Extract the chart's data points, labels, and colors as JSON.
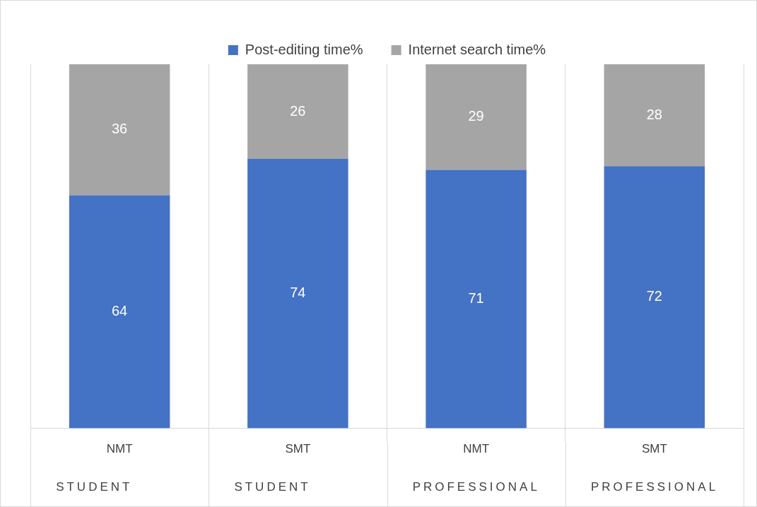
{
  "chart_data": {
    "type": "bar",
    "stacked": true,
    "categories": [
      "NMT",
      "SMT",
      "NMT",
      "SMT"
    ],
    "series": [
      {
        "name": "Post-editing time%",
        "color": "#4472c4",
        "values": [
          64,
          74,
          71,
          72
        ]
      },
      {
        "name": "Internet search time%",
        "color": "#a5a5a5",
        "values": [
          36,
          26,
          29,
          28
        ]
      }
    ],
    "ylim": [
      0,
      100
    ],
    "tick_labels": "x",
    "grid": "x",
    "legend": "top",
    "data_labels": true,
    "annotations": [
      "STUDENT",
      "STUDENT",
      "PROFESSIONAL",
      "PROFESSIONAL"
    ]
  }
}
